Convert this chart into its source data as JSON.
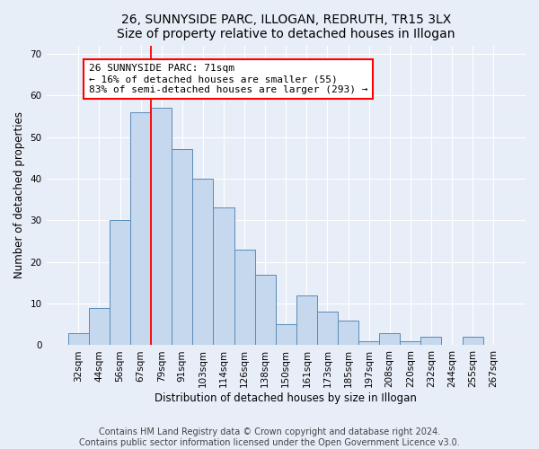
{
  "title1": "26, SUNNYSIDE PARC, ILLOGAN, REDRUTH, TR15 3LX",
  "title2": "Size of property relative to detached houses in Illogan",
  "xlabel": "Distribution of detached houses by size in Illogan",
  "ylabel": "Number of detached properties",
  "bar_labels": [
    "32sqm",
    "44sqm",
    "56sqm",
    "67sqm",
    "79sqm",
    "91sqm",
    "103sqm",
    "114sqm",
    "126sqm",
    "138sqm",
    "150sqm",
    "161sqm",
    "173sqm",
    "185sqm",
    "197sqm",
    "208sqm",
    "220sqm",
    "232sqm",
    "244sqm",
    "255sqm",
    "267sqm"
  ],
  "bar_values": [
    3,
    9,
    30,
    56,
    57,
    47,
    40,
    33,
    23,
    17,
    5,
    12,
    8,
    6,
    1,
    3,
    1,
    2,
    0,
    2,
    0
  ],
  "bar_color": "#c5d8ed",
  "bar_edge_color": "#5a8ab8",
  "vline_pos": 3.5,
  "vline_color": "red",
  "annotation_text": "26 SUNNYSIDE PARC: 71sqm\n← 16% of detached houses are smaller (55)\n83% of semi-detached houses are larger (293) →",
  "annotation_box_color": "white",
  "annotation_box_edge_color": "red",
  "ylim": [
    0,
    72
  ],
  "yticks": [
    0,
    10,
    20,
    30,
    40,
    50,
    60,
    70
  ],
  "footnote1": "Contains HM Land Registry data © Crown copyright and database right 2024.",
  "footnote2": "Contains public sector information licensed under the Open Government Licence v3.0.",
  "bg_color": "#e8eef8",
  "grid_color": "#ffffff",
  "title_fontsize": 10,
  "axis_label_fontsize": 8.5,
  "tick_fontsize": 7.5,
  "annotation_fontsize": 8,
  "footnote_fontsize": 7
}
